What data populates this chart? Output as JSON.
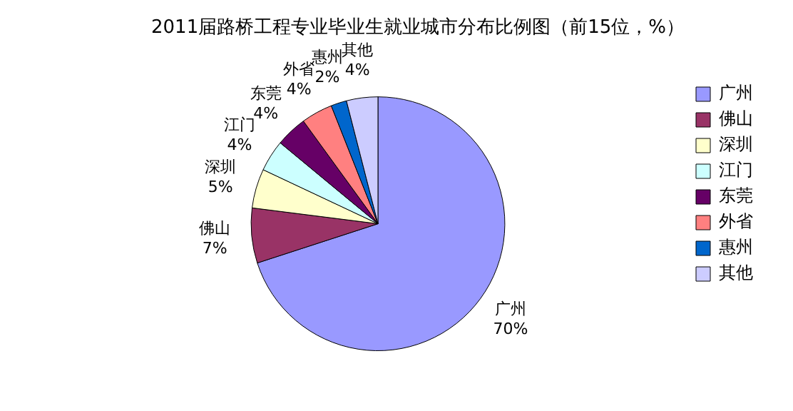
{
  "chart_data": {
    "type": "pie",
    "title": "2011届路桥工程专业毕业生就业城市分布比例图（前15位，%）",
    "categories": [
      "广州",
      "佛山",
      "深圳",
      "江门",
      "东莞",
      "外省",
      "惠州",
      "其他"
    ],
    "values": [
      70,
      7,
      5,
      4,
      4,
      4,
      2,
      4
    ],
    "value_labels": [
      "70%",
      "7%",
      "5%",
      "4%",
      "4%",
      "4%",
      "2%",
      "4%"
    ],
    "colors": [
      "#9999ff",
      "#993366",
      "#ffffcc",
      "#ccffff",
      "#660066",
      "#ff8080",
      "#0066cc",
      "#ccccff"
    ],
    "legend": "right"
  }
}
